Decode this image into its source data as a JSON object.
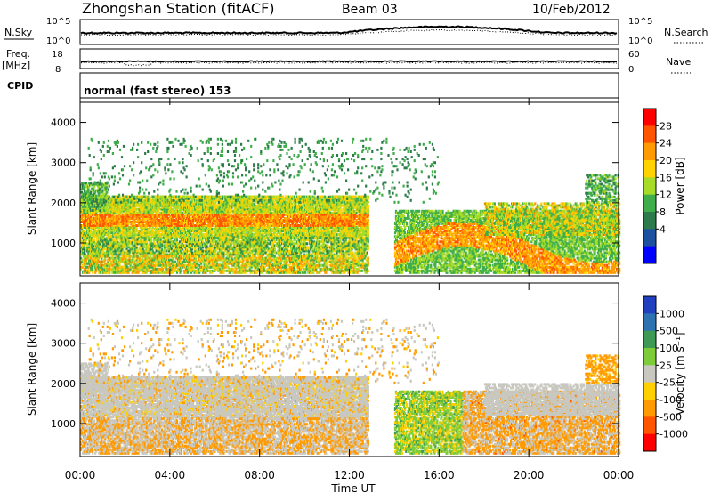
{
  "header": {
    "title": "Zhongshan Station (fitACF)",
    "beam": "Beam 03",
    "date": "10/Feb/2012"
  },
  "top_panel": {
    "left_label": "N.Sky",
    "right_label": "N.Search",
    "left_ticks": [
      "10^5",
      "10^0"
    ],
    "right_ticks": [
      "10^5",
      "10^0"
    ]
  },
  "freq_panel": {
    "left_label_1": "Freq.",
    "left_label_2": "[MHz]",
    "right_label": "Nave",
    "left_ticks": [
      "18",
      "8"
    ],
    "right_ticks": [
      "60",
      "0"
    ]
  },
  "cpid": {
    "label": "CPID",
    "text": "normal (fast stereo) 153"
  },
  "power_colorbar": {
    "label": "Power [dB]",
    "ticks": [
      "28",
      "24",
      "20",
      "16",
      "12",
      "8",
      "4"
    ],
    "colors": [
      "#ff0000",
      "#ff5500",
      "#ff9a00",
      "#ffd200",
      "#a6dc28",
      "#3fae4a",
      "#2d7b4b",
      "#1e50a0",
      "#0000ff"
    ]
  },
  "velocity_colorbar": {
    "label": "Velocity [m s⁻¹]",
    "ticks": [
      "1000",
      "500",
      "100",
      "25",
      "-25",
      "-100",
      "-500",
      "-1000"
    ],
    "colors": [
      "#2040c0",
      "#2f72b0",
      "#3e9a55",
      "#7fcc3a",
      "#c8c8c0",
      "#ffd000",
      "#ff9a00",
      "#ff5500",
      "#ff0000"
    ]
  },
  "chart_data": {
    "type": "heatmap",
    "xlabel": "Time UT",
    "ylabel": "Slant Range [km]",
    "x_ticks": [
      "00:00",
      "04:00",
      "08:00",
      "12:00",
      "16:00",
      "20:00",
      "00:00"
    ],
    "y_ticks": [
      "1000",
      "2000",
      "3000",
      "4000"
    ],
    "xlim_hours": [
      0,
      24
    ],
    "ylim_km": [
      180,
      4500
    ],
    "panels": [
      {
        "name": "Power [dB]"
      },
      {
        "name": "Velocity [m s⁻¹]"
      }
    ]
  }
}
